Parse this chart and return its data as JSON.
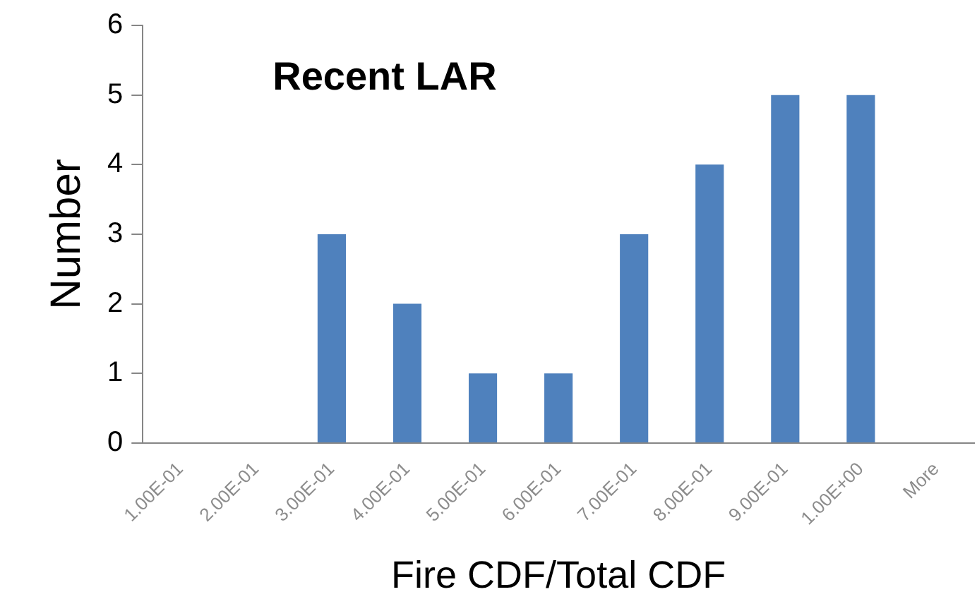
{
  "chart_data": {
    "type": "bar",
    "title": "Recent LAR",
    "xlabel": "Fire CDF/Total CDF",
    "ylabel": "Number",
    "categories": [
      "1.00E-01",
      "2.00E-01",
      "3.00E-01",
      "4.00E-01",
      "5.00E-01",
      "6.00E-01",
      "7.00E-01",
      "8.00E-01",
      "9.00E-01",
      "1.00E+00",
      "More"
    ],
    "values": [
      0,
      0,
      3,
      2,
      1,
      1,
      3,
      4,
      5,
      5,
      0
    ],
    "color": "#4f81bd",
    "ylim": [
      0,
      6
    ],
    "yticks": [
      0,
      1,
      2,
      3,
      4,
      5,
      6
    ],
    "grid": false,
    "legend": false
  }
}
